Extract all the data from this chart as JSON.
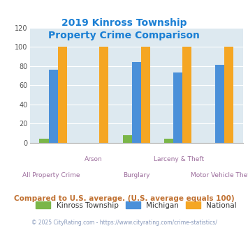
{
  "title": "2019 Kinross Township\nProperty Crime Comparison",
  "title_color": "#1a7fd4",
  "categories": [
    "All Property Crime",
    "Arson",
    "Burglary",
    "Larceny & Theft",
    "Motor Vehicle Theft"
  ],
  "kinross": [
    4,
    0,
    8,
    4,
    0
  ],
  "michigan": [
    76,
    0,
    84,
    73,
    81
  ],
  "national": [
    100,
    100,
    100,
    100,
    100
  ],
  "colors": {
    "kinross": "#7ab648",
    "michigan": "#4a90d9",
    "national": "#f5a623"
  },
  "ylim": [
    0,
    120
  ],
  "yticks": [
    0,
    20,
    40,
    60,
    80,
    100,
    120
  ],
  "plot_bg": "#dde9f0",
  "xlabel_color": "#9b6b9b",
  "note": "Compared to U.S. average. (U.S. average equals 100)",
  "note_color": "#c07030",
  "footer": "© 2025 CityRating.com - https://www.cityrating.com/crime-statistics/",
  "footer_color": "#8899bb",
  "legend_labels": [
    "Kinross Township",
    "Michigan",
    "National"
  ],
  "bar_width": 0.22,
  "x_label_top": [
    "",
    "Arson",
    "",
    "Larceny & Theft",
    ""
  ],
  "x_label_bottom": [
    "All Property Crime",
    "",
    "Burglary",
    "",
    "Motor Vehicle Theft"
  ]
}
